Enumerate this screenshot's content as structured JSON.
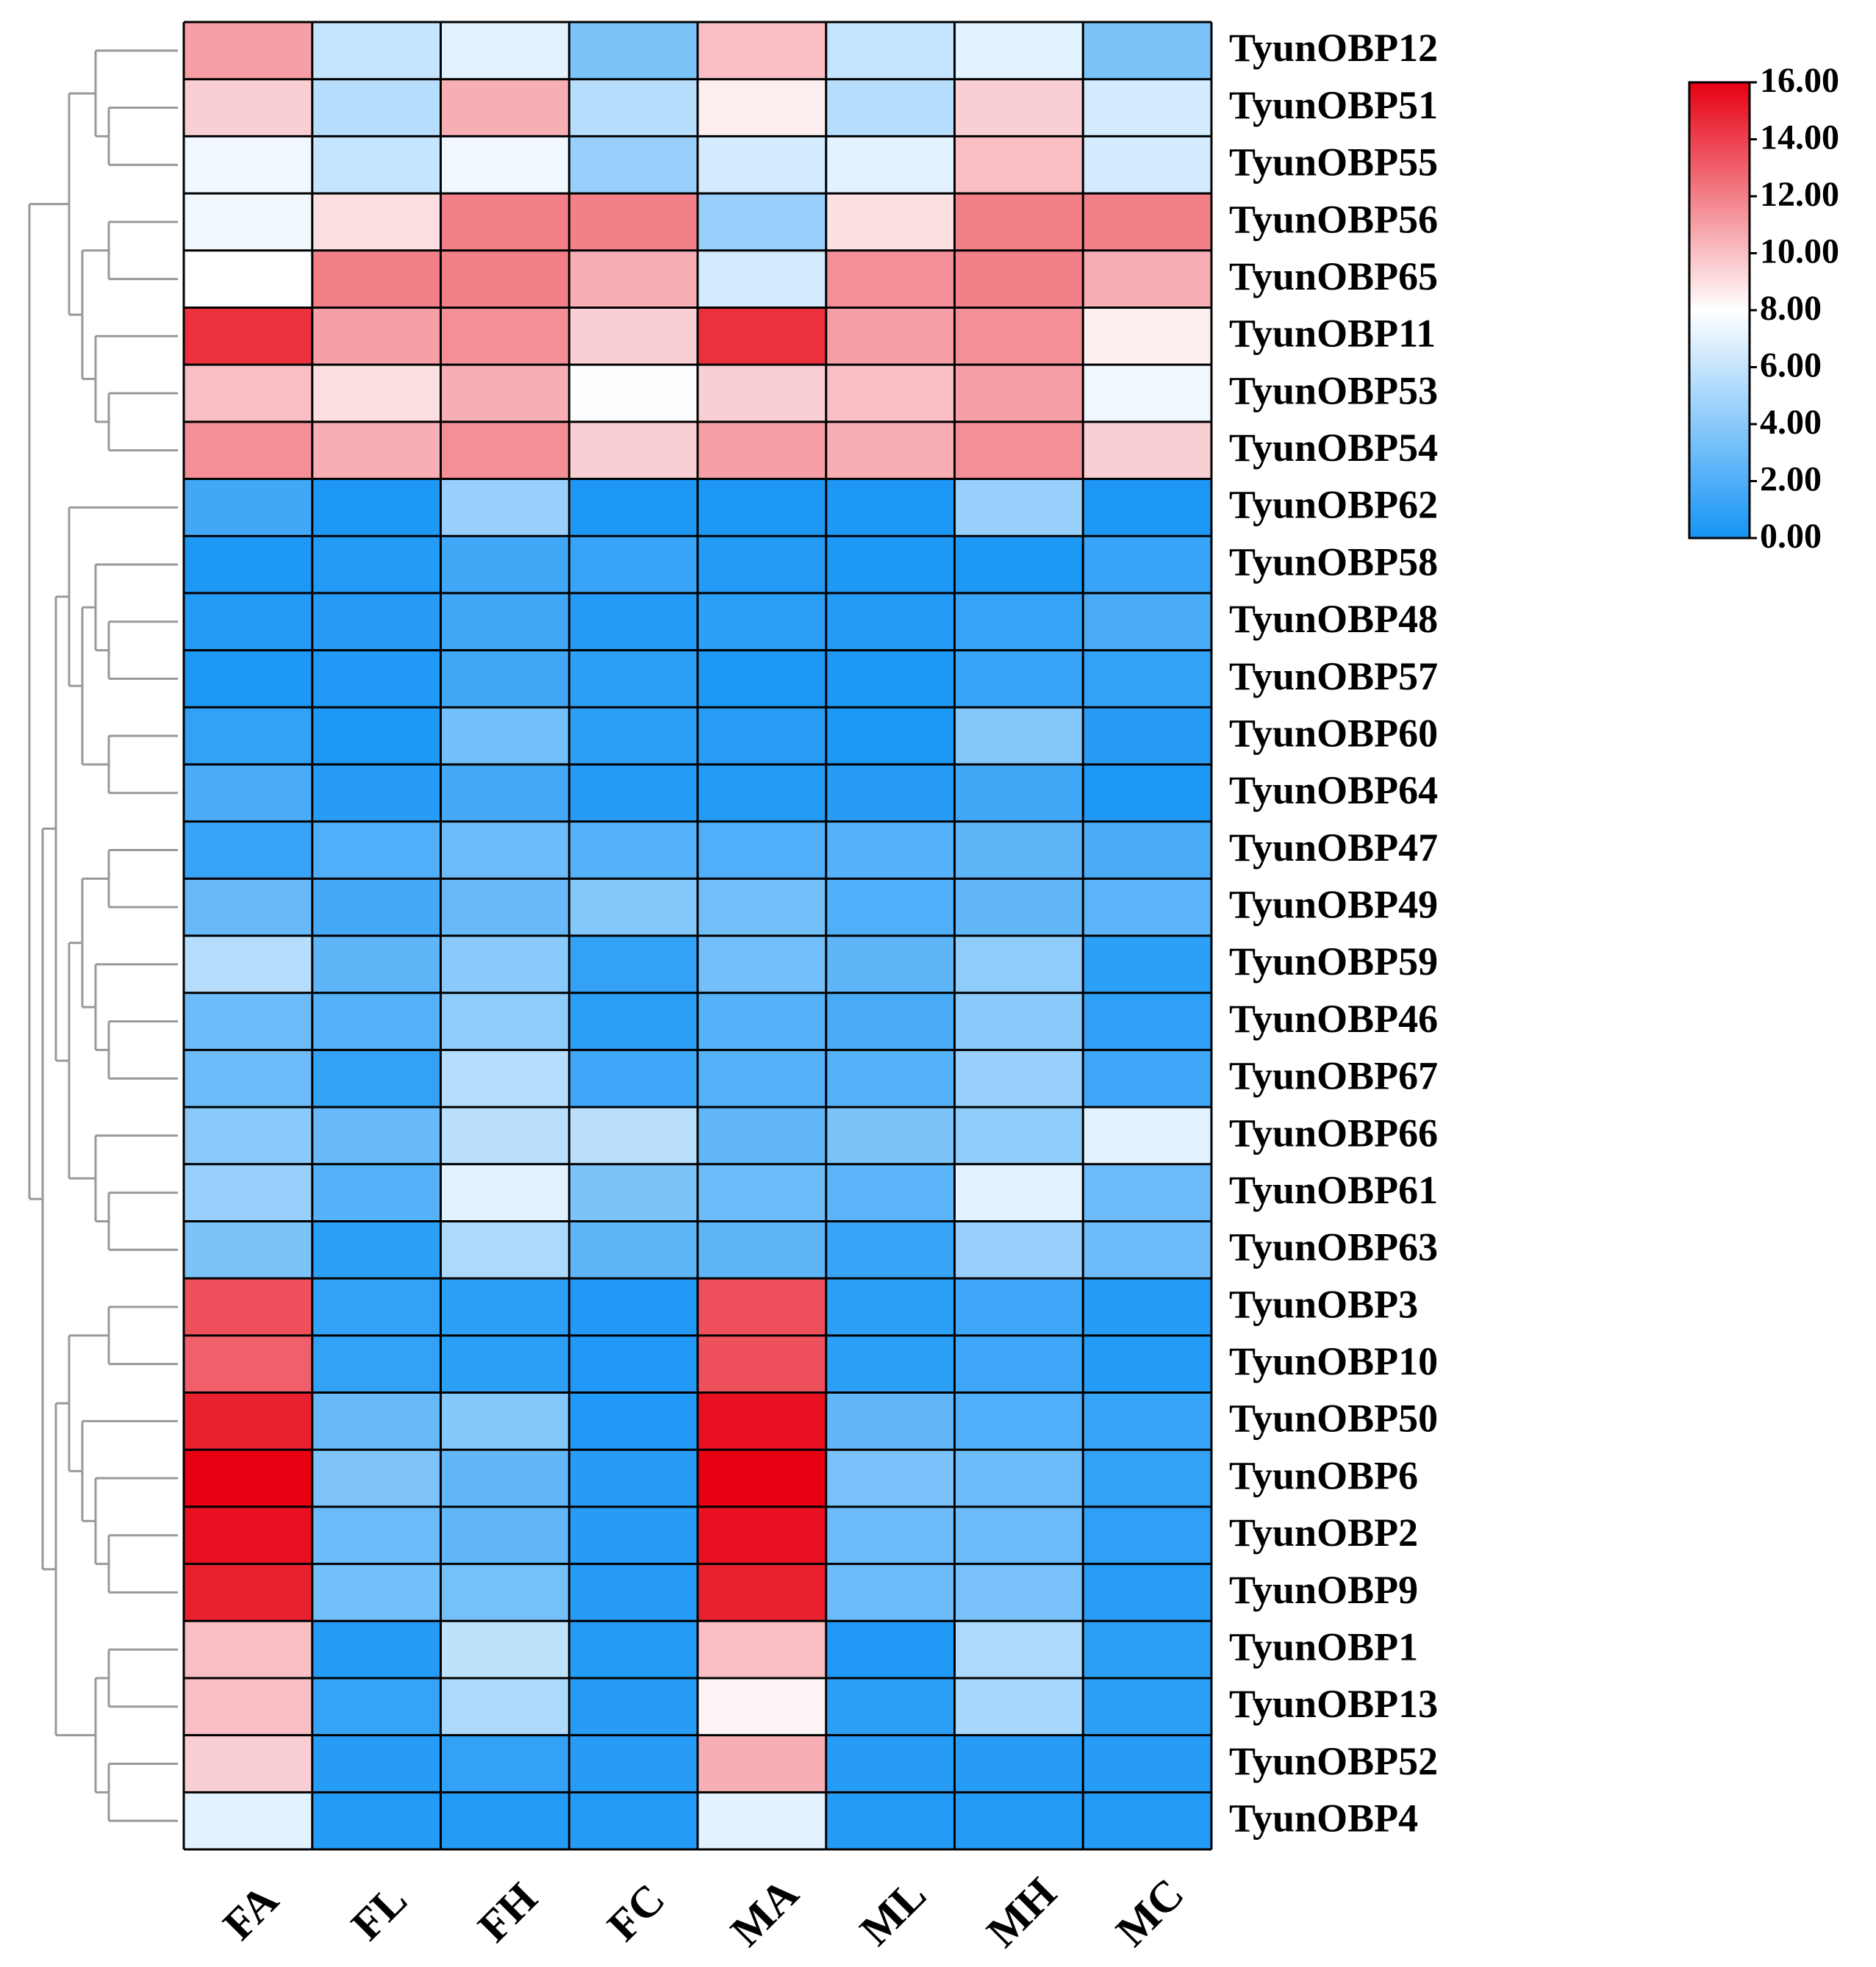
{
  "chart_data": {
    "type": "heatmap",
    "title": "",
    "columns": [
      "FA",
      "FL",
      "FH",
      "FC",
      "MA",
      "ML",
      "MH",
      "MC"
    ],
    "rows": [
      "TyunOBP12",
      "TyunOBP51",
      "TyunOBP55",
      "TyunOBP56",
      "TyunOBP65",
      "TyunOBP11",
      "TyunOBP53",
      "TyunOBP54",
      "TyunOBP62",
      "TyunOBP58",
      "TyunOBP48",
      "TyunOBP57",
      "TyunOBP60",
      "TyunOBP64",
      "TyunOBP47",
      "TyunOBP49",
      "TyunOBP59",
      "TyunOBP46",
      "TyunOBP67",
      "TyunOBP66",
      "TyunOBP61",
      "TyunOBP63",
      "TyunOBP3",
      "TyunOBP10",
      "TyunOBP50",
      "TyunOBP6",
      "TyunOBP2",
      "TyunOBP9",
      "TyunOBP1",
      "TyunOBP13",
      "TyunOBP52",
      "TyunOBP4"
    ],
    "values": [
      [
        11.0,
        6.0,
        7.0,
        3.5,
        10.0,
        6.0,
        7.0,
        3.5
      ],
      [
        9.5,
        5.5,
        10.5,
        5.5,
        8.5,
        5.5,
        9.5,
        6.5
      ],
      [
        7.5,
        6.0,
        7.5,
        4.5,
        6.5,
        7.0,
        10.0,
        6.5
      ],
      [
        7.5,
        9.0,
        12.0,
        12.0,
        4.5,
        9.0,
        12.0,
        12.0
      ],
      [
        8.0,
        12.0,
        12.0,
        10.5,
        6.5,
        11.5,
        12.0,
        10.5
      ],
      [
        14.5,
        11.0,
        11.5,
        9.5,
        14.5,
        11.0,
        11.5,
        8.5
      ],
      [
        10.0,
        9.0,
        10.5,
        7.9,
        9.5,
        10.0,
        11.0,
        7.5
      ],
      [
        11.5,
        10.5,
        11.5,
        9.5,
        11.0,
        10.5,
        11.5,
        9.5
      ],
      [
        1.5,
        0.3,
        4.5,
        0.3,
        0.3,
        0.3,
        4.5,
        0.3
      ],
      [
        0.3,
        0.5,
        1.5,
        1.2,
        0.5,
        0.3,
        0.3,
        1.2
      ],
      [
        0.5,
        0.6,
        1.5,
        0.5,
        0.8,
        0.5,
        1.2,
        1.8
      ],
      [
        0.3,
        0.4,
        1.5,
        0.8,
        0.3,
        0.3,
        1.2,
        1.0
      ],
      [
        1.0,
        0.3,
        3.2,
        0.8,
        0.7,
        0.2,
        3.8,
        0.6
      ],
      [
        1.8,
        0.6,
        1.6,
        0.5,
        0.5,
        0.6,
        1.5,
        0.3
      ],
      [
        1.2,
        2.0,
        3.0,
        2.2,
        2.0,
        2.2,
        2.5,
        1.8
      ],
      [
        2.8,
        1.6,
        2.8,
        3.8,
        3.2,
        2.0,
        2.6,
        2.4
      ],
      [
        5.5,
        2.5,
        4.0,
        1.0,
        3.2,
        2.5,
        4.2,
        0.8
      ],
      [
        3.0,
        2.2,
        4.2,
        0.8,
        2.2,
        1.8,
        4.0,
        0.9
      ],
      [
        3.0,
        1.0,
        5.5,
        1.4,
        2.2,
        2.2,
        4.5,
        1.4
      ],
      [
        4.0,
        2.8,
        5.6,
        5.6,
        2.6,
        3.5,
        4.2,
        7.0
      ],
      [
        4.5,
        2.2,
        7.0,
        3.5,
        3.0,
        2.4,
        7.0,
        3.0
      ],
      [
        3.5,
        0.8,
        5.2,
        2.5,
        2.5,
        1.2,
        4.5,
        3.0
      ],
      [
        13.5,
        1.0,
        0.8,
        0.4,
        13.5,
        0.8,
        1.4,
        0.5
      ],
      [
        13.0,
        1.0,
        0.8,
        0.4,
        13.5,
        0.8,
        1.4,
        0.5
      ],
      [
        15.0,
        2.8,
        3.8,
        0.4,
        15.5,
        2.6,
        2.0,
        1.2
      ],
      [
        16.0,
        3.6,
        2.6,
        0.6,
        16.0,
        3.4,
        3.0,
        1.0
      ],
      [
        15.5,
        3.0,
        2.6,
        0.6,
        15.5,
        3.0,
        3.0,
        0.9
      ],
      [
        15.0,
        3.2,
        3.3,
        0.6,
        15.0,
        3.0,
        3.4,
        0.7
      ],
      [
        10.0,
        0.5,
        5.8,
        0.5,
        10.0,
        0.4,
        5.2,
        0.8
      ],
      [
        10.0,
        1.1,
        5.2,
        0.6,
        8.3,
        0.8,
        5.0,
        0.8
      ],
      [
        9.5,
        0.6,
        1.0,
        0.6,
        10.5,
        0.6,
        0.6,
        0.6
      ],
      [
        7.0,
        0.5,
        0.5,
        0.5,
        7.0,
        0.5,
        0.5,
        0.5
      ]
    ],
    "colorbar": {
      "min": 0,
      "max": 16,
      "ticks": [
        "0.00",
        "2.00",
        "4.00",
        "6.00",
        "8.00",
        "10.00",
        "12.00",
        "14.00",
        "16.00"
      ],
      "colors": {
        "low": "#1594f5",
        "mid": "#ffffff",
        "high": "#e60012"
      }
    },
    "dendrogram": {
      "side": "left",
      "color": "#999999",
      "tree": [
        [
          [
            "TyunOBP12",
            [
              "TyunOBP51",
              "TyunOBP55"
            ]
          ],
          [
            [
              "TyunOBP56",
              "TyunOBP65"
            ],
            [
              "TyunOBP11",
              [
                "TyunOBP53",
                "TyunOBP54"
              ]
            ]
          ]
        ],
        [
          [
            [
              "TyunOBP62",
              [
                [
                  "TyunOBP58",
                  [
                    "TyunOBP48",
                    "TyunOBP57"
                  ]
                ],
                [
                  "TyunOBP60",
                  "TyunOBP64"
                ]
              ]
            ],
            [
              [
                [
                  "TyunOBP47",
                  "TyunOBP49"
                ],
                [
                  "TyunOBP59",
                  [
                    "TyunOBP46",
                    "TyunOBP67"
                  ]
                ]
              ],
              [
                "TyunOBP66",
                [
                  "TyunOBP61",
                  "TyunOBP63"
                ]
              ]
            ]
          ],
          [
            [
              [
                "TyunOBP3",
                "TyunOBP10"
              ],
              [
                "TyunOBP50",
                [
                  "TyunOBP6",
                  [
                    "TyunOBP2",
                    "TyunOBP9"
                  ]
                ]
              ]
            ],
            [
              [
                "TyunOBP1",
                "TyunOBP13"
              ],
              [
                "TyunOBP52",
                "TyunOBP4"
              ]
            ]
          ]
        ]
      ]
    }
  }
}
